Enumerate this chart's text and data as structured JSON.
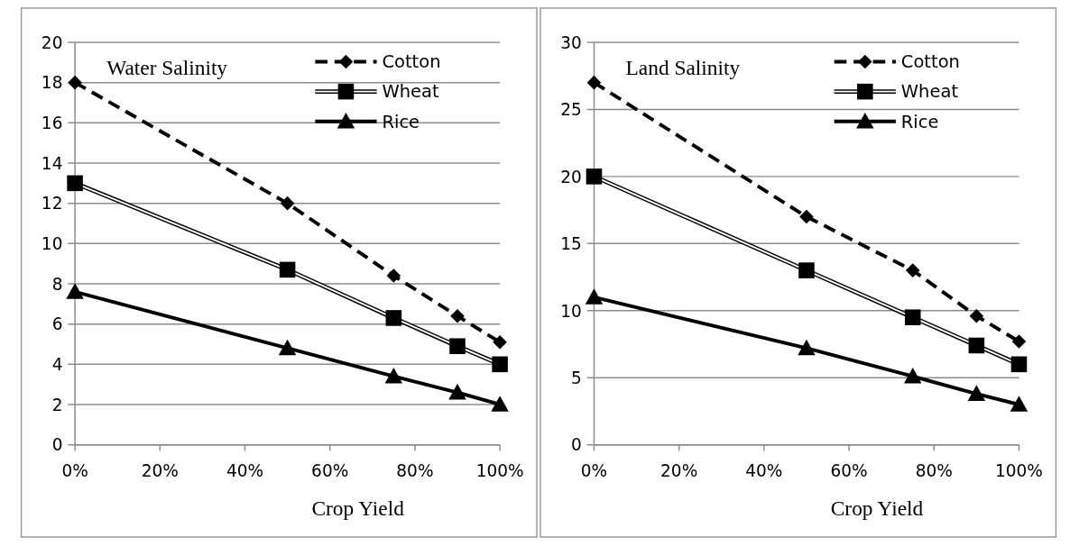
{
  "chart_data": [
    {
      "type": "line",
      "title": "Water Salinity",
      "xlabel": "Crop Yield",
      "x": [
        0,
        50,
        75,
        90,
        100
      ],
      "xlim": [
        0,
        100
      ],
      "xticks": [
        {
          "value": 0,
          "label": "0%"
        },
        {
          "value": 20,
          "label": "20%"
        },
        {
          "value": 40,
          "label": "40%"
        },
        {
          "value": 60,
          "label": "60%"
        },
        {
          "value": 80,
          "label": "80%"
        },
        {
          "value": 100,
          "label": "100%"
        }
      ],
      "ylim": [
        0,
        20
      ],
      "yticks": [
        0,
        2,
        4,
        6,
        8,
        10,
        12,
        14,
        16,
        18,
        20
      ],
      "grid": "y",
      "legend": "top right",
      "series": [
        {
          "name": "Cotton",
          "color": "#000000",
          "marker": "diamond",
          "line_style": "dashed",
          "values": [
            18,
            12,
            8.4,
            6.4,
            5.1
          ]
        },
        {
          "name": "Wheat",
          "color": "#000000",
          "marker": "square",
          "line_style": "solid",
          "values": [
            13,
            8.7,
            6.3,
            4.9,
            4
          ]
        },
        {
          "name": "Rice",
          "color": "#000000",
          "marker": "triangle",
          "line_style": "solid",
          "values": [
            7.6,
            4.8,
            3.4,
            2.6,
            2
          ]
        }
      ]
    },
    {
      "type": "line",
      "title": "Land Salinity",
      "xlabel": "Crop Yield",
      "x": [
        0,
        50,
        75,
        90,
        100
      ],
      "xlim": [
        0,
        100
      ],
      "xticks": [
        {
          "value": 0,
          "label": "0%"
        },
        {
          "value": 20,
          "label": "20%"
        },
        {
          "value": 40,
          "label": "40%"
        },
        {
          "value": 60,
          "label": "60%"
        },
        {
          "value": 80,
          "label": "80%"
        },
        {
          "value": 100,
          "label": "100%"
        }
      ],
      "ylim": [
        0,
        30
      ],
      "yticks": [
        0,
        5,
        10,
        15,
        20,
        25,
        30
      ],
      "grid": "y",
      "legend": "top right",
      "series": [
        {
          "name": "Cotton",
          "color": "#000000",
          "marker": "diamond",
          "line_style": "dashed",
          "values": [
            27,
            17,
            13,
            9.6,
            7.7
          ]
        },
        {
          "name": "Wheat",
          "color": "#000000",
          "marker": "square",
          "line_style": "solid",
          "values": [
            20,
            13,
            9.5,
            7.4,
            6
          ]
        },
        {
          "name": "Rice",
          "color": "#000000",
          "marker": "triangle",
          "line_style": "solid",
          "values": [
            11,
            7.2,
            5.1,
            3.8,
            3
          ]
        }
      ]
    }
  ]
}
